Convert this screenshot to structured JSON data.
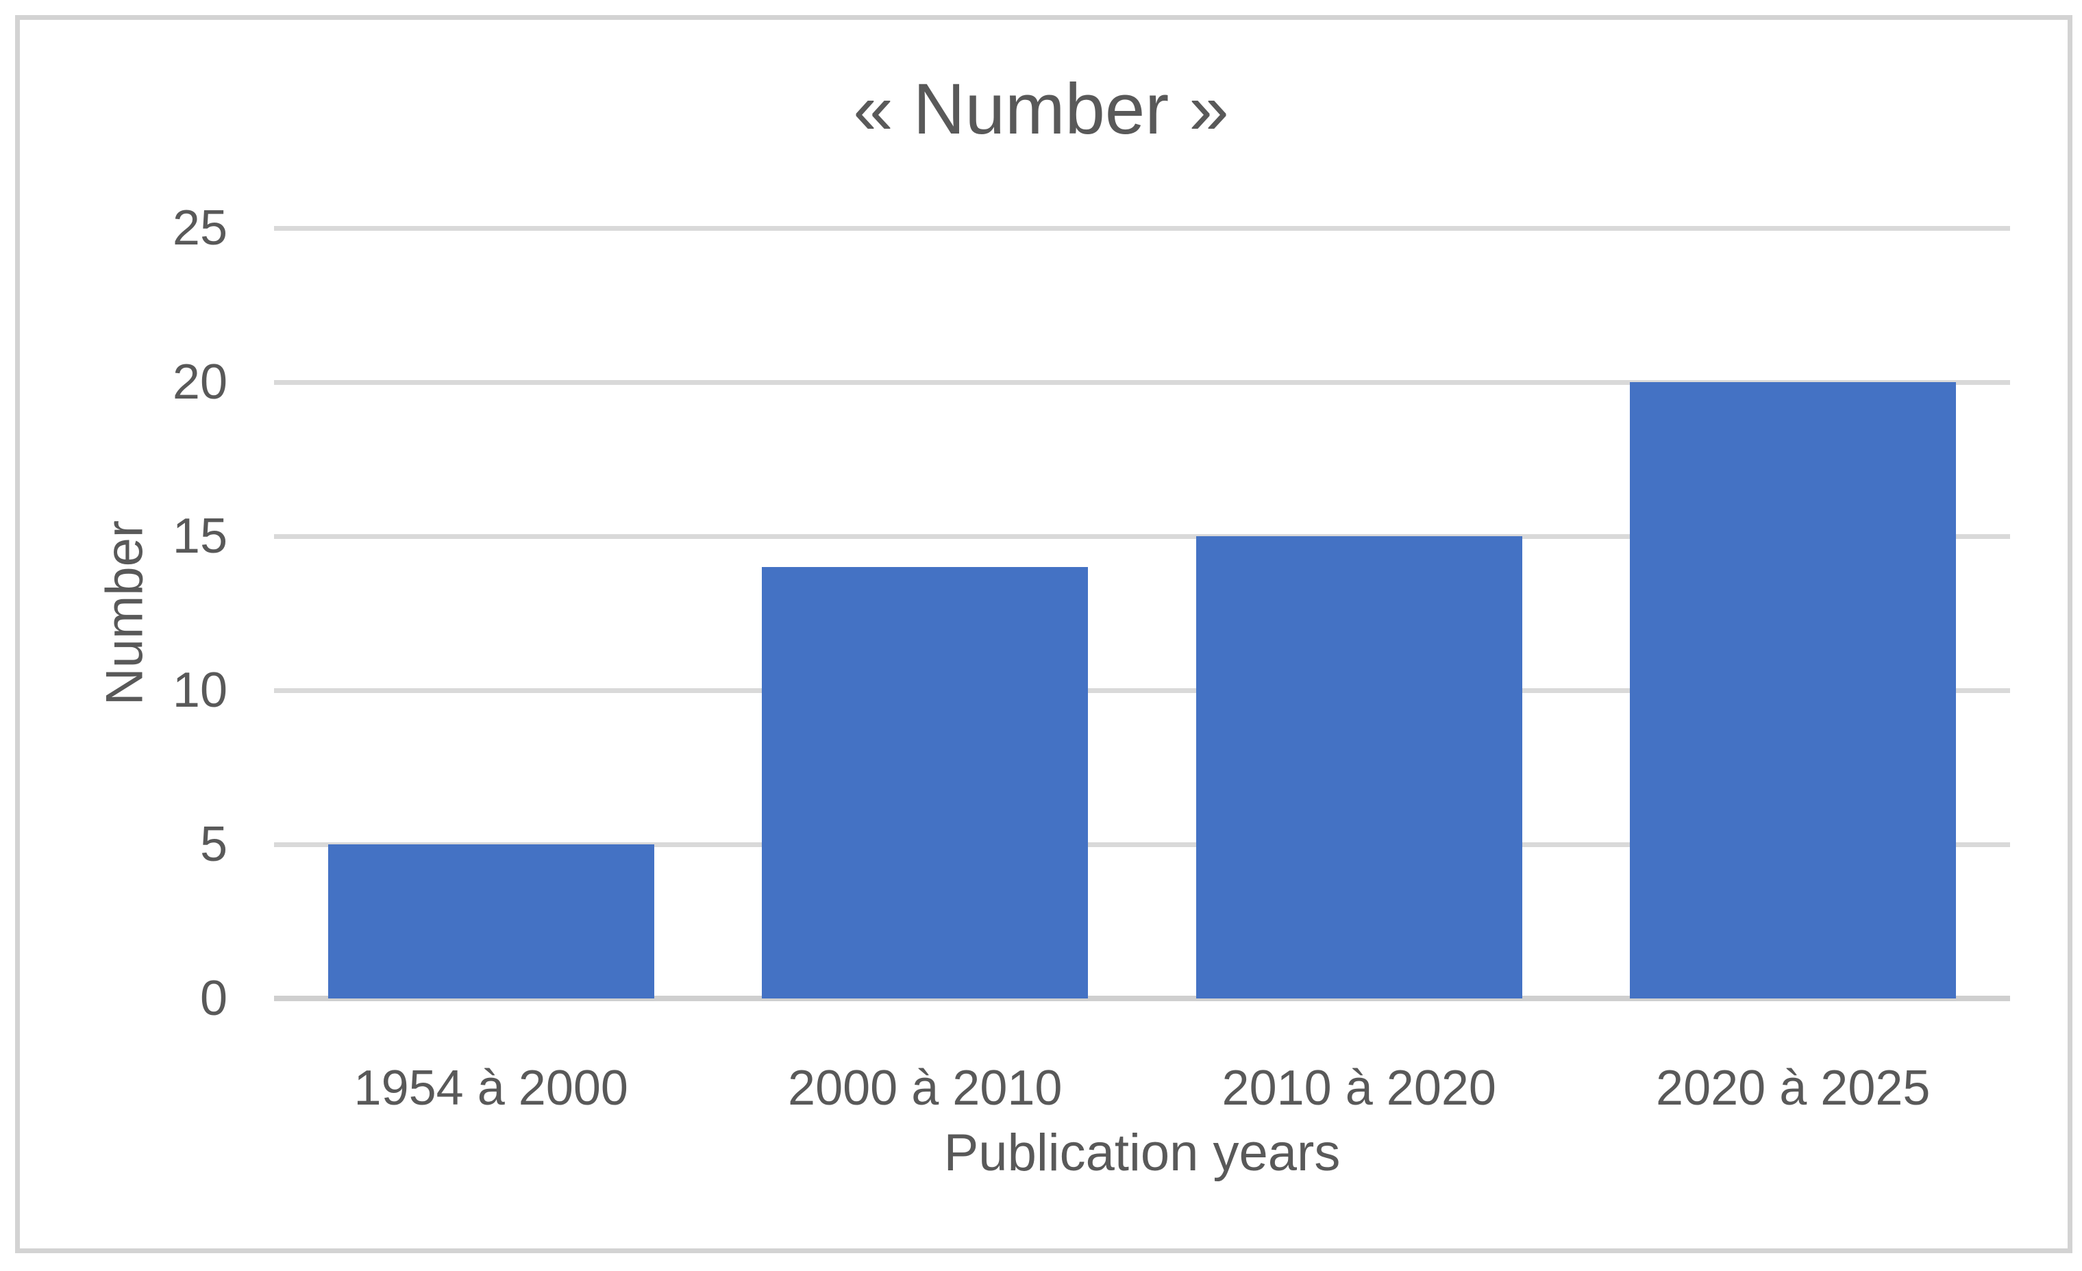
{
  "figure": {
    "background_color": "#ffffff",
    "frame_border_color": "#d3d3d3"
  },
  "chart_data": {
    "type": "bar",
    "title": "« Number »",
    "categories": [
      "1954 à 2000",
      "2000 à 2010",
      "2010 à 2020",
      "2020 à 2025"
    ],
    "values": [
      5,
      14,
      15,
      20
    ],
    "xlabel": "Publication years",
    "ylabel": "Number",
    "ylim": [
      0,
      25
    ],
    "yticks": [
      0,
      5,
      10,
      15,
      20,
      25
    ],
    "grid": true,
    "legend_position": "none",
    "bar_color": "#4472c4",
    "gridline_color": "#d9d9d9",
    "axis_line_color": "#cfcfcf",
    "text_color": "#595959"
  }
}
